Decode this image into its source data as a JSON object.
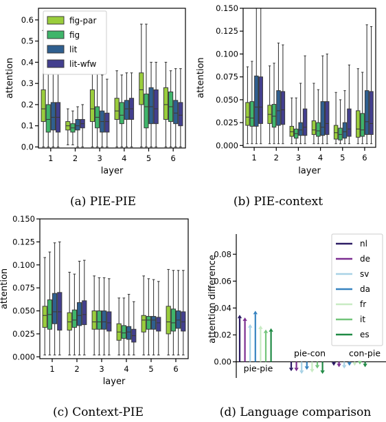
{
  "colors": {
    "fig-par": "#9acd3c",
    "fig": "#3fb56a",
    "lit": "#2f5f8f",
    "lit-wfw": "#433f8e",
    "nl": "#2b1b64",
    "de": "#7b2d90",
    "sv": "#a8d2e6",
    "da": "#3783c0",
    "fr": "#c8ebc3",
    "it": "#72c47a",
    "es": "#1f8a44"
  },
  "chart_data": [
    {
      "type": "box",
      "caption": "(a) PIE-PIE",
      "xlabel": "layer",
      "ylabel": "attention",
      "ylim": [
        -0.005,
        0.655
      ],
      "yticks": [
        "0.0",
        "0.1",
        "0.2",
        "0.3",
        "0.4",
        "0.5",
        "0.6"
      ],
      "ytick_values": [
        0.0,
        0.1,
        0.2,
        0.3,
        0.4,
        0.5,
        0.6
      ],
      "categories": [
        "1",
        "2",
        "3",
        "4",
        "5",
        "6"
      ],
      "legend": [
        "fig-par",
        "fig",
        "lit",
        "lit-wfw"
      ],
      "series": [
        {
          "name": "fig-par",
          "boxes": [
            [
              0,
              0.12,
              0.18,
              0.27,
              0.55
            ],
            [
              0.01,
              0.08,
              0.1,
              0.12,
              0.18
            ],
            [
              0,
              0.12,
              0.18,
              0.27,
              0.43
            ],
            [
              0,
              0.13,
              0.17,
              0.23,
              0.36
            ],
            [
              0,
              0.2,
              0.27,
              0.35,
              0.58
            ],
            [
              0,
              0.13,
              0.2,
              0.28,
              0.4
            ]
          ]
        },
        {
          "name": "fig",
          "boxes": [
            [
              0,
              0.07,
              0.13,
              0.2,
              0.38
            ],
            [
              0.01,
              0.07,
              0.09,
              0.11,
              0.17
            ],
            [
              0,
              0.09,
              0.14,
              0.19,
              0.38
            ],
            [
              0,
              0.11,
              0.15,
              0.21,
              0.34
            ],
            [
              0,
              0.09,
              0.19,
              0.25,
              0.58
            ],
            [
              0,
              0.12,
              0.19,
              0.26,
              0.36
            ]
          ]
        },
        {
          "name": "lit",
          "boxes": [
            [
              0,
              0.08,
              0.14,
              0.21,
              0.36
            ],
            [
              0,
              0.08,
              0.1,
              0.13,
              0.19
            ],
            [
              0,
              0.07,
              0.12,
              0.17,
              0.34
            ],
            [
              0,
              0.13,
              0.18,
              0.22,
              0.35
            ],
            [
              0,
              0.11,
              0.19,
              0.28,
              0.4
            ],
            [
              0,
              0.11,
              0.16,
              0.22,
              0.37
            ]
          ]
        },
        {
          "name": "lit-wfw",
          "boxes": [
            [
              0,
              0.07,
              0.14,
              0.21,
              0.37
            ],
            [
              0,
              0.09,
              0.11,
              0.13,
              0.2
            ],
            [
              0,
              0.07,
              0.12,
              0.16,
              0.32
            ],
            [
              0,
              0.13,
              0.18,
              0.23,
              0.35
            ],
            [
              0,
              0.11,
              0.18,
              0.27,
              0.4
            ],
            [
              0,
              0.1,
              0.15,
              0.21,
              0.37
            ]
          ]
        }
      ]
    },
    {
      "type": "box",
      "caption": "(b) PIE-context",
      "xlabel": "layer",
      "ylabel": "attention",
      "ylim": [
        -0.002,
        0.15
      ],
      "yticks": [
        "0.000",
        "0.025",
        "0.050",
        "0.075",
        "0.100",
        "0.125",
        "0.150"
      ],
      "ytick_values": [
        0,
        0.025,
        0.05,
        0.075,
        0.1,
        0.125,
        0.15
      ],
      "categories": [
        "1",
        "2",
        "3",
        "4",
        "5",
        "6"
      ],
      "series": [
        {
          "name": "fig-par",
          "boxes": [
            [
              0.002,
              0.022,
              0.031,
              0.047,
              0.086
            ],
            [
              0.002,
              0.024,
              0.034,
              0.044,
              0.087
            ],
            [
              0.002,
              0.01,
              0.015,
              0.021,
              0.052
            ],
            [
              0.002,
              0.012,
              0.017,
              0.027,
              0.068
            ],
            [
              0.002,
              0.007,
              0.014,
              0.022,
              0.058
            ],
            [
              0.002,
              0.009,
              0.018,
              0.038,
              0.084
            ]
          ]
        },
        {
          "name": "fig",
          "boxes": [
            [
              0.002,
              0.021,
              0.03,
              0.048,
              0.092
            ],
            [
              0.002,
              0.02,
              0.032,
              0.045,
              0.09
            ],
            [
              0.002,
              0.008,
              0.013,
              0.018,
              0.052
            ],
            [
              0.002,
              0.01,
              0.016,
              0.025,
              0.061
            ],
            [
              0.002,
              0.006,
              0.012,
              0.019,
              0.05
            ],
            [
              0.002,
              0.01,
              0.017,
              0.035,
              0.08
            ]
          ]
        },
        {
          "name": "lit",
          "boxes": [
            [
              0.002,
              0.021,
              0.042,
              0.076,
              0.15
            ],
            [
              0.002,
              0.022,
              0.038,
              0.06,
              0.112
            ],
            [
              0.002,
              0.011,
              0.017,
              0.025,
              0.068
            ],
            [
              0.002,
              0.011,
              0.02,
              0.048,
              0.098
            ],
            [
              0.002,
              0.008,
              0.015,
              0.025,
              0.06
            ],
            [
              0.002,
              0.012,
              0.026,
              0.06,
              0.132
            ]
          ]
        },
        {
          "name": "lit-wfw",
          "boxes": [
            [
              0.002,
              0.024,
              0.042,
              0.075,
              0.15
            ],
            [
              0.002,
              0.023,
              0.039,
              0.059,
              0.11
            ],
            [
              0.002,
              0.011,
              0.02,
              0.04,
              0.098
            ],
            [
              0.002,
              0.012,
              0.024,
              0.048,
              0.1
            ],
            [
              0.002,
              0.01,
              0.018,
              0.04,
              0.088
            ],
            [
              0.002,
              0.012,
              0.024,
              0.059,
              0.13
            ]
          ]
        }
      ]
    },
    {
      "type": "box",
      "caption": "(c) Context-PIE",
      "xlabel": "layer",
      "ylabel": "attention",
      "ylim": [
        -0.002,
        0.15
      ],
      "yticks": [
        "0.000",
        "0.025",
        "0.050",
        "0.075",
        "0.100",
        "0.125",
        "0.150"
      ],
      "ytick_values": [
        0,
        0.025,
        0.05,
        0.075,
        0.1,
        0.125,
        0.15
      ],
      "categories": [
        "1",
        "2",
        "3",
        "4",
        "5",
        "6"
      ],
      "series": [
        {
          "name": "fig-par",
          "boxes": [
            [
              0.002,
              0.032,
              0.045,
              0.055,
              0.108
            ],
            [
              0.002,
              0.029,
              0.038,
              0.048,
              0.092
            ],
            [
              0.002,
              0.03,
              0.038,
              0.05,
              0.088
            ],
            [
              0.002,
              0.018,
              0.027,
              0.036,
              0.064
            ],
            [
              0.002,
              0.027,
              0.04,
              0.045,
              0.088
            ],
            [
              0.002,
              0.025,
              0.038,
              0.055,
              0.095
            ]
          ]
        },
        {
          "name": "fig",
          "boxes": [
            [
              0.002,
              0.03,
              0.046,
              0.062,
              0.114
            ],
            [
              0.002,
              0.032,
              0.04,
              0.051,
              0.09
            ],
            [
              0.002,
              0.03,
              0.038,
              0.05,
              0.086
            ],
            [
              0.002,
              0.02,
              0.026,
              0.034,
              0.064
            ],
            [
              0.002,
              0.03,
              0.04,
              0.044,
              0.085
            ],
            [
              0.002,
              0.028,
              0.037,
              0.052,
              0.094
            ]
          ]
        },
        {
          "name": "lit",
          "boxes": [
            [
              0.002,
              0.036,
              0.049,
              0.069,
              0.124
            ],
            [
              0.002,
              0.034,
              0.045,
              0.059,
              0.104
            ],
            [
              0.002,
              0.03,
              0.038,
              0.05,
              0.086
            ],
            [
              0.002,
              0.019,
              0.027,
              0.033,
              0.068
            ],
            [
              0.002,
              0.03,
              0.04,
              0.044,
              0.084
            ],
            [
              0.002,
              0.031,
              0.04,
              0.05,
              0.094
            ]
          ]
        },
        {
          "name": "lit-wfw",
          "boxes": [
            [
              0.002,
              0.029,
              0.049,
              0.07,
              0.125
            ],
            [
              0.002,
              0.035,
              0.046,
              0.061,
              0.105
            ],
            [
              0.002,
              0.028,
              0.037,
              0.049,
              0.085
            ],
            [
              0.002,
              0.016,
              0.023,
              0.03,
              0.06
            ],
            [
              0.002,
              0.028,
              0.037,
              0.043,
              0.082
            ],
            [
              0.002,
              0.028,
              0.038,
              0.049,
              0.094
            ]
          ]
        }
      ]
    },
    {
      "type": "arrow",
      "caption": "(d) Language comparison",
      "ylabel": "attention difference",
      "ylim": [
        -0.012,
        0.095
      ],
      "yticks": [
        "0.00",
        "0.02",
        "0.04",
        "0.06",
        "0.08"
      ],
      "ytick_values": [
        0,
        0.02,
        0.04,
        0.06,
        0.08
      ],
      "groups": [
        "pie-pie",
        "pie-con",
        "con-pie"
      ],
      "legend": [
        "nl",
        "de",
        "sv",
        "da",
        "fr",
        "it",
        "es"
      ],
      "series": [
        {
          "name": "nl",
          "values": [
            0.035,
            -0.007,
            -0.003
          ]
        },
        {
          "name": "de",
          "values": [
            0.033,
            -0.007,
            -0.004
          ]
        },
        {
          "name": "sv",
          "values": [
            0.028,
            -0.009,
            -0.005
          ]
        },
        {
          "name": "da",
          "values": [
            0.038,
            -0.006,
            -0.003
          ]
        },
        {
          "name": "fr",
          "values": [
            0.027,
            -0.008,
            -0.003
          ]
        },
        {
          "name": "it",
          "values": [
            0.024,
            -0.005,
            -0.002
          ]
        },
        {
          "name": "es",
          "values": [
            0.025,
            -0.009,
            -0.004
          ]
        }
      ]
    }
  ]
}
